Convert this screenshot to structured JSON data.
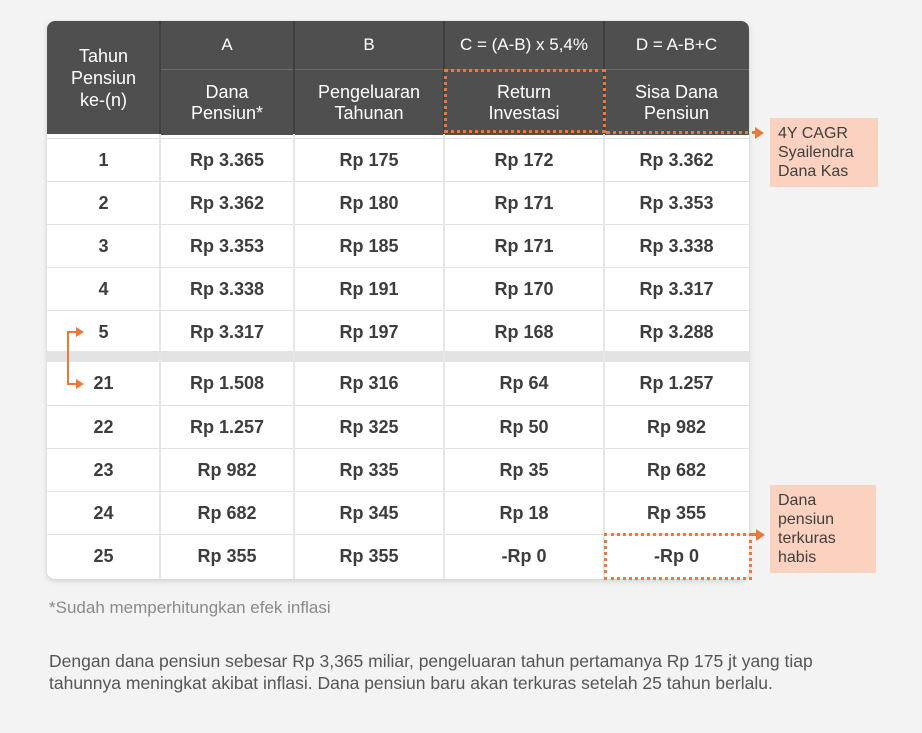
{
  "table": {
    "header_left": "Tahun\nPensiun\nke-(n)",
    "columns": [
      {
        "top": "A",
        "sub": "Dana\nPensiun*"
      },
      {
        "top": "B",
        "sub": "Pengeluaran\nTahunan"
      },
      {
        "top": "C = (A-B) x 5,4%",
        "sub": "Return\nInvestasi"
      },
      {
        "top": "D = A-B+C",
        "sub": "Sisa Dana\nPensiun"
      }
    ],
    "rows": [
      {
        "n": "1",
        "a": "Rp 3.365",
        "b": "Rp 175",
        "c": "Rp 172",
        "d": "Rp 3.362"
      },
      {
        "n": "2",
        "a": "Rp 3.362",
        "b": "Rp 180",
        "c": "Rp 171",
        "d": "Rp 3.353"
      },
      {
        "n": "3",
        "a": "Rp 3.353",
        "b": "Rp 185",
        "c": "Rp 171",
        "d": "Rp 3.338"
      },
      {
        "n": "4",
        "a": "Rp 3.338",
        "b": "Rp 191",
        "c": "Rp 170",
        "d": "Rp 3.317"
      },
      {
        "n": "5",
        "a": "Rp 3.317",
        "b": "Rp 197",
        "c": "Rp 168",
        "d": "Rp 3.288"
      },
      {
        "n": "21",
        "a": "Rp 1.508",
        "b": "Rp 316",
        "c": "Rp 64",
        "d": "Rp 1.257"
      },
      {
        "n": "22",
        "a": "Rp 1.257",
        "b": "Rp 325",
        "c": "Rp 50",
        "d": "Rp 982"
      },
      {
        "n": "23",
        "a": "Rp 982",
        "b": "Rp 335",
        "c": "Rp 35",
        "d": "Rp 682"
      },
      {
        "n": "24",
        "a": "Rp 682",
        "b": "Rp 345",
        "c": "Rp 18",
        "d": "Rp 355"
      },
      {
        "n": "25",
        "a": "Rp 355",
        "b": "Rp 355",
        "c": "-Rp 0",
        "d": "-Rp 0"
      }
    ]
  },
  "callouts": {
    "cagr": "4Y CAGR\nSyailendra\nDana Kas",
    "depleted": "Dana\npensiun\nterkuras\nhabis"
  },
  "footnote": "*Sudah memperhitungkan efek inflasi",
  "paragraph": "Dengan dana pensiun sebesar Rp 3,365 miliar, pengeluaran tahun pertamanya Rp 175 jt yang tiap tahunnya meningkat akibat inflasi. Dana pensiun baru akan terkuras setelah 25 tahun berlalu.",
  "colors": {
    "header": "#4f4f4f",
    "accent": "#e87a3c",
    "callout_bg": "#fbd2c0"
  }
}
